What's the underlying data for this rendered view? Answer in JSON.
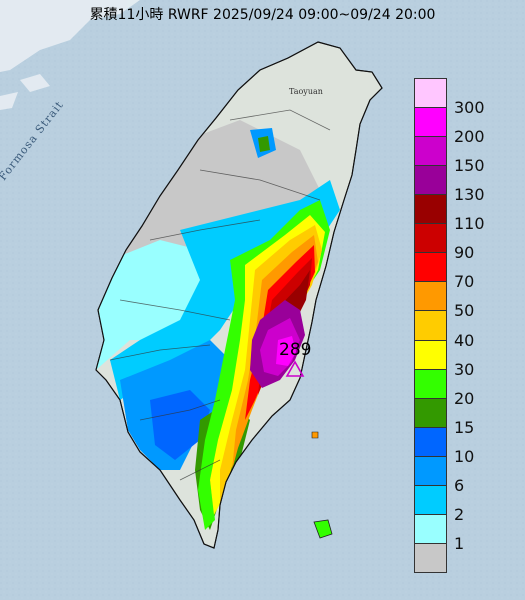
{
  "title": "累積11小時 RWRF 2025/09/24 09:00~09/24 20:00",
  "strait_label": "Formosa Strait",
  "city_label": "Taoyuan",
  "max_value_label": "289",
  "legend": {
    "levels": [
      {
        "label": "300",
        "color": "#ffc6ff"
      },
      {
        "label": "200",
        "color": "#ff00ff"
      },
      {
        "label": "150",
        "color": "#cc00cc"
      },
      {
        "label": "130",
        "color": "#990099"
      },
      {
        "label": "110",
        "color": "#990000"
      },
      {
        "label": "90",
        "color": "#cc0000"
      },
      {
        "label": "70",
        "color": "#ff0000"
      },
      {
        "label": "50",
        "color": "#ff9900"
      },
      {
        "label": "40",
        "color": "#ffcc00"
      },
      {
        "label": "30",
        "color": "#ffff00"
      },
      {
        "label": "20",
        "color": "#33ff00"
      },
      {
        "label": "15",
        "color": "#339900"
      },
      {
        "label": "10",
        "color": "#0066ff"
      },
      {
        "label": "6",
        "color": "#0099ff"
      },
      {
        "label": "2",
        "color": "#00ccff"
      },
      {
        "label": "1",
        "color": "#99ffff"
      },
      {
        "label": "",
        "color": "#c8c8c8"
      }
    ]
  }
}
